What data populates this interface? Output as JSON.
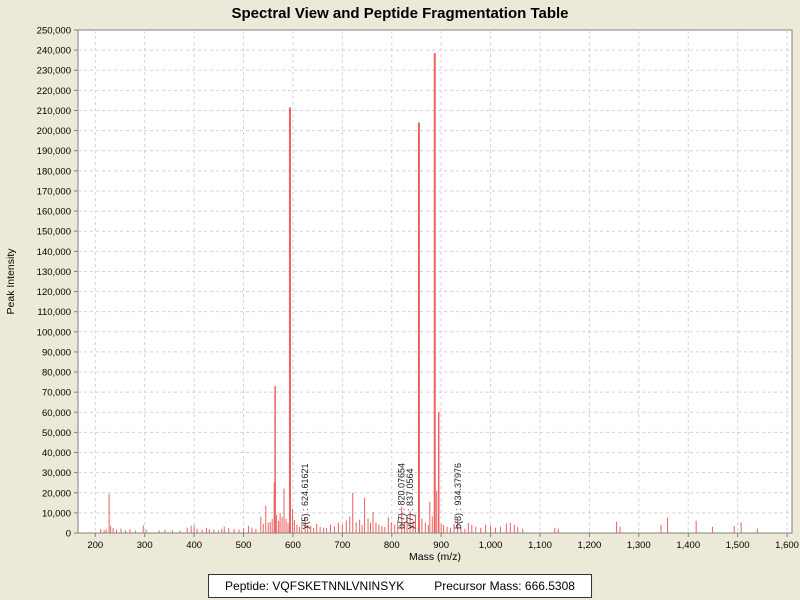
{
  "title": "Spectral View and Peptide Fragmentation Table",
  "footer": {
    "peptide_label": "Peptide: VQFSKETNNLVNINSYK",
    "precursor_label": "Precursor Mass: 666.5308"
  },
  "chart_data": {
    "type": "bar",
    "title": "Spectral View and Peptide Fragmentation Table",
    "xlabel": "Mass (m/z)",
    "ylabel": "Peak Intensity",
    "xlim": [
      165,
      1610
    ],
    "ylim": [
      0,
      250000
    ],
    "x_tick_start": 200,
    "x_tick_end": 1600,
    "x_tick_step": 100,
    "y_tick_step": 10000,
    "grid": "dashed",
    "colors": {
      "page_background": "#ece9d8",
      "plot_background": "#ffffff",
      "peak": "#ef6060",
      "grid": "#d2d2d2",
      "axis": "#808080",
      "tick_text": "#000000",
      "annotation_text": "#1a1a1a"
    },
    "annotations": [
      {
        "label": "y(5) : 624.61621",
        "mz": 624.61621
      },
      {
        "label": "b(7) : 820.07654",
        "mz": 820.07654
      },
      {
        "label": "y(7) : 837.0564",
        "mz": 837.0564
      },
      {
        "label": "b(8) : 934.37976",
        "mz": 934.37976
      }
    ],
    "peaks": [
      [
        211,
        2000
      ],
      [
        218,
        1400
      ],
      [
        222,
        1800
      ],
      [
        228,
        19500
      ],
      [
        231,
        3600
      ],
      [
        236,
        2400
      ],
      [
        243,
        1700
      ],
      [
        252,
        2100
      ],
      [
        261,
        1400
      ],
      [
        270,
        1900
      ],
      [
        281,
        1200
      ],
      [
        297,
        3800
      ],
      [
        303,
        1500
      ],
      [
        329,
        1300
      ],
      [
        341,
        1600
      ],
      [
        356,
        1400
      ],
      [
        371,
        1200
      ],
      [
        386,
        2600
      ],
      [
        394,
        3600
      ],
      [
        400,
        3900
      ],
      [
        406,
        2100
      ],
      [
        416,
        1500
      ],
      [
        425,
        2600
      ],
      [
        431,
        2000
      ],
      [
        440,
        1600
      ],
      [
        449,
        1300
      ],
      [
        456,
        2100
      ],
      [
        461,
        3100
      ],
      [
        470,
        2500
      ],
      [
        481,
        2000
      ],
      [
        491,
        1600
      ],
      [
        500,
        2300
      ],
      [
        510,
        3600
      ],
      [
        517,
        2600
      ],
      [
        525,
        2100
      ],
      [
        535,
        8000
      ],
      [
        540,
        4500
      ],
      [
        545,
        13500
      ],
      [
        550,
        5000
      ],
      [
        554,
        5500
      ],
      [
        558,
        7000
      ],
      [
        562,
        25000
      ],
      [
        564,
        73000
      ],
      [
        567,
        9000
      ],
      [
        571,
        6000
      ],
      [
        574,
        10000
      ],
      [
        578,
        8000
      ],
      [
        582,
        22000
      ],
      [
        586,
        7000
      ],
      [
        590,
        5000
      ],
      [
        594,
        211500
      ],
      [
        599,
        12000
      ],
      [
        603,
        6500
      ],
      [
        608,
        4000
      ],
      [
        613,
        3000
      ],
      [
        618,
        5000
      ],
      [
        624.6,
        7500
      ],
      [
        630,
        4000
      ],
      [
        636,
        3500
      ],
      [
        642,
        2500
      ],
      [
        648,
        4500
      ],
      [
        655,
        3000
      ],
      [
        662,
        2600
      ],
      [
        668,
        2400
      ],
      [
        676,
        4200
      ],
      [
        684,
        3400
      ],
      [
        692,
        5200
      ],
      [
        700,
        4100
      ],
      [
        708,
        6200
      ],
      [
        715,
        8200
      ],
      [
        721,
        20000
      ],
      [
        728,
        5200
      ],
      [
        735,
        6600
      ],
      [
        740,
        4000
      ],
      [
        745,
        17500
      ],
      [
        752,
        7200
      ],
      [
        757,
        5000
      ],
      [
        762,
        10500
      ],
      [
        768,
        5200
      ],
      [
        774,
        4100
      ],
      [
        780,
        3500
      ],
      [
        786,
        3000
      ],
      [
        793,
        7800
      ],
      [
        799,
        5200
      ],
      [
        806,
        4200
      ],
      [
        812,
        6200
      ],
      [
        820.1,
        13000
      ],
      [
        826,
        5200
      ],
      [
        831,
        8200
      ],
      [
        837.1,
        11000
      ],
      [
        843,
        6200
      ],
      [
        848,
        9200
      ],
      [
        855,
        204000
      ],
      [
        861,
        7200
      ],
      [
        868,
        5200
      ],
      [
        874,
        4000
      ],
      [
        877,
        15500
      ],
      [
        882,
        8200
      ],
      [
        887,
        238500
      ],
      [
        891,
        21000
      ],
      [
        895,
        60000
      ],
      [
        900,
        4500
      ],
      [
        905,
        4000
      ],
      [
        912,
        3100
      ],
      [
        919,
        2600
      ],
      [
        926,
        4600
      ],
      [
        933,
        6200
      ],
      [
        940,
        3100
      ],
      [
        948,
        2100
      ],
      [
        955,
        5100
      ],
      [
        962,
        4100
      ],
      [
        970,
        3100
      ],
      [
        980,
        2600
      ],
      [
        990,
        4100
      ],
      [
        1000,
        3600
      ],
      [
        1010,
        2600
      ],
      [
        1020,
        3100
      ],
      [
        1032,
        4600
      ],
      [
        1040,
        5100
      ],
      [
        1048,
        4100
      ],
      [
        1055,
        3100
      ],
      [
        1065,
        2100
      ],
      [
        1130,
        2600
      ],
      [
        1137,
        2100
      ],
      [
        1255,
        5600
      ],
      [
        1262,
        3100
      ],
      [
        1345,
        4100
      ],
      [
        1358,
        7600
      ],
      [
        1416,
        6100
      ],
      [
        1449,
        3100
      ],
      [
        1493,
        3600
      ],
      [
        1507,
        5100
      ],
      [
        1540,
        2100
      ]
    ]
  }
}
